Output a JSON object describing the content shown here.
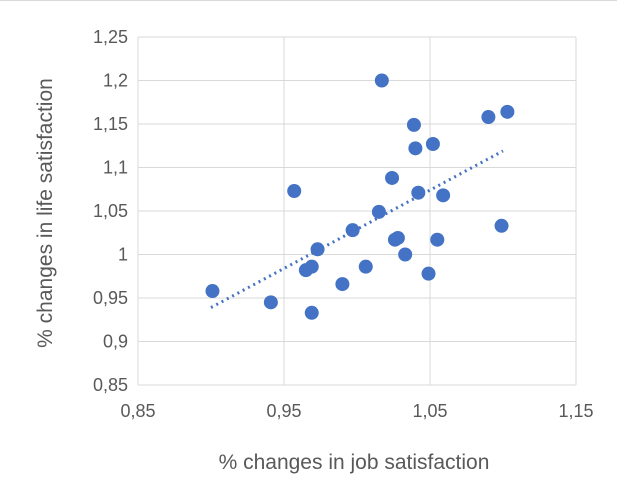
{
  "chart_data": {
    "type": "scatter",
    "title": "",
    "xlabel": "% changes in job satisfaction",
    "ylabel": "% changes in life satisfaction",
    "xlim": [
      0.85,
      1.15
    ],
    "ylim": [
      0.85,
      1.25
    ],
    "xticks": [
      "0,85",
      "0,95",
      "1,05",
      "1,15"
    ],
    "yticks": [
      "0,85",
      "0,9",
      "0,95",
      "1",
      "1,05",
      "1,1",
      "1,15",
      "1,2",
      "1,25"
    ],
    "grid": true,
    "legend": "none",
    "marker_color": "#4472c4",
    "trendline": {
      "style": "dotted",
      "color": "#4472c4",
      "x": [
        0.9,
        1.1
      ],
      "y": [
        0.939,
        1.119
      ]
    },
    "points": [
      {
        "x": 0.901,
        "y": 0.958
      },
      {
        "x": 0.941,
        "y": 0.945
      },
      {
        "x": 0.957,
        "y": 1.073
      },
      {
        "x": 0.965,
        "y": 0.982
      },
      {
        "x": 0.969,
        "y": 0.986
      },
      {
        "x": 0.969,
        "y": 0.933
      },
      {
        "x": 0.973,
        "y": 1.006
      },
      {
        "x": 0.99,
        "y": 0.966
      },
      {
        "x": 0.997,
        "y": 1.028
      },
      {
        "x": 1.006,
        "y": 0.986
      },
      {
        "x": 1.015,
        "y": 1.049
      },
      {
        "x": 1.017,
        "y": 1.2
      },
      {
        "x": 1.024,
        "y": 1.088
      },
      {
        "x": 1.026,
        "y": 1.017
      },
      {
        "x": 1.028,
        "y": 1.019
      },
      {
        "x": 1.033,
        "y": 1.0
      },
      {
        "x": 1.039,
        "y": 1.149
      },
      {
        "x": 1.04,
        "y": 1.122
      },
      {
        "x": 1.042,
        "y": 1.071
      },
      {
        "x": 1.049,
        "y": 0.978
      },
      {
        "x": 1.052,
        "y": 1.127
      },
      {
        "x": 1.055,
        "y": 1.017
      },
      {
        "x": 1.059,
        "y": 1.068
      },
      {
        "x": 1.09,
        "y": 1.158
      },
      {
        "x": 1.099,
        "y": 1.033
      },
      {
        "x": 1.103,
        "y": 1.164
      }
    ]
  }
}
